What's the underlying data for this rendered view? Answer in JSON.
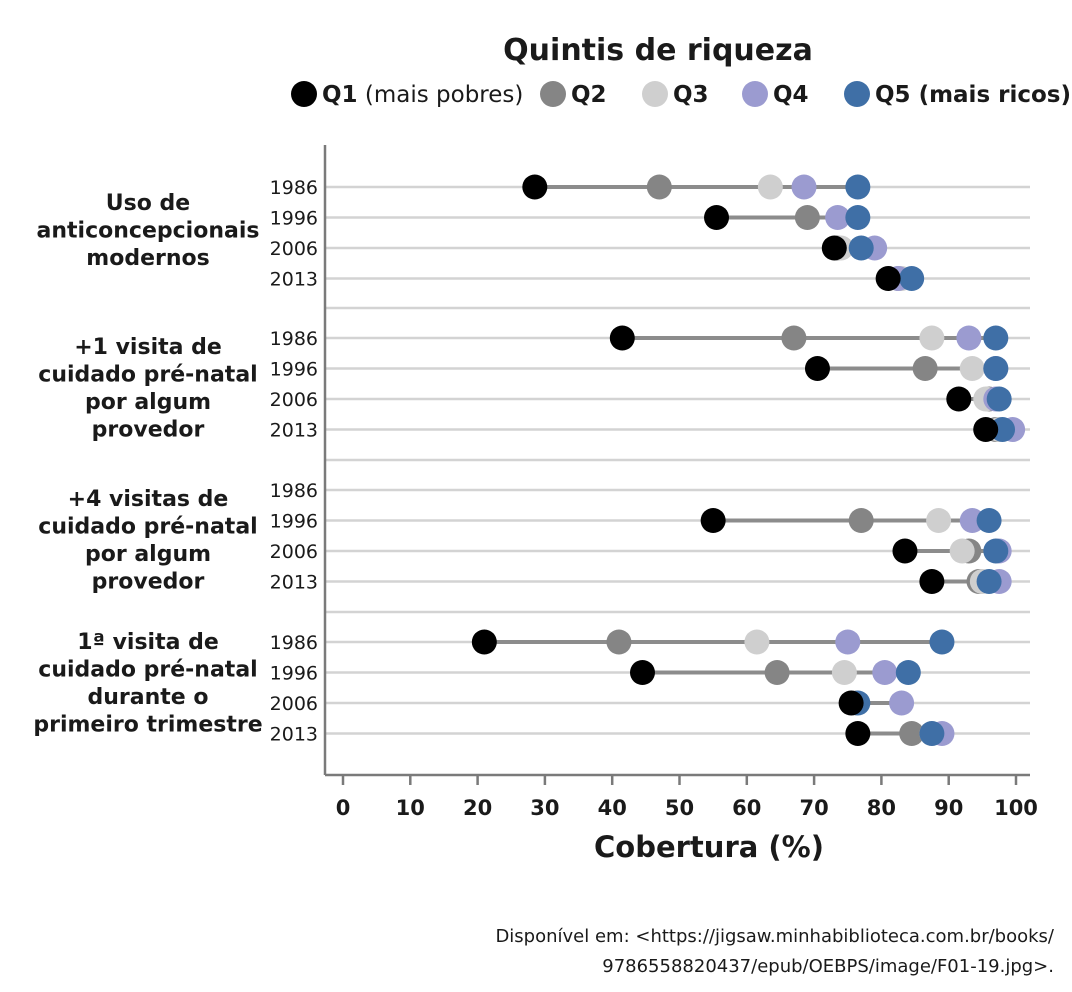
{
  "chart_data": {
    "type": "dot-range",
    "legend": {
      "title": "Quintis de riqueza",
      "entries": [
        {
          "key": "Q1",
          "bold": "Q1",
          "rest": " (mais pobres)",
          "color": "#000000"
        },
        {
          "key": "Q2",
          "bold": "Q2",
          "rest": "",
          "color": "#858585"
        },
        {
          "key": "Q3",
          "bold": "Q3",
          "rest": "",
          "color": "#cfcfcf"
        },
        {
          "key": "Q4",
          "bold": "Q4",
          "rest": "",
          "color": "#9b9bd0"
        },
        {
          "key": "Q5",
          "bold": "Q5 (mais ricos)",
          "rest": "",
          "color": "#3f6fa6"
        }
      ]
    },
    "xlabel": "Cobertura (%)",
    "xlim": [
      0,
      100
    ],
    "xticks": [
      "0",
      "10",
      "20",
      "30",
      "40",
      "50",
      "60",
      "70",
      "80",
      "90",
      "100"
    ],
    "groups": [
      {
        "label_lines": [
          "Uso de",
          "anticoncepcionais",
          "modernos"
        ],
        "rows": [
          {
            "year": "1986",
            "values": [
              28.5,
              47,
              63.5,
              68.5,
              76.5
            ]
          },
          {
            "year": "1996",
            "values": [
              55.5,
              69,
              null,
              73.5,
              76.5
            ]
          },
          {
            "year": "2006",
            "values": [
              73,
              73.5,
              74,
              79,
              77
            ]
          },
          {
            "year": "2013",
            "values": [
              81,
              82.5,
              83,
              82.5,
              84.5
            ]
          }
        ]
      },
      {
        "label_lines": [
          "+1 visita de",
          "cuidado pré-natal",
          "por algum",
          "provedor"
        ],
        "rows": [
          {
            "year": "1986",
            "values": [
              41.5,
              67,
              87.5,
              93,
              97
            ]
          },
          {
            "year": "1996",
            "values": [
              70.5,
              86.5,
              93.5,
              97,
              97
            ]
          },
          {
            "year": "2006",
            "values": [
              91.5,
              96,
              95.5,
              97,
              97.5
            ]
          },
          {
            "year": "2013",
            "values": [
              95.5,
              97,
              97.5,
              99.5,
              98
            ]
          }
        ]
      },
      {
        "label_lines": [
          "+4 visitas de",
          "cuidado pré-natal",
          "por algum",
          "provedor"
        ],
        "rows": [
          {
            "year": "1986",
            "values": [
              null,
              null,
              null,
              null,
              null
            ]
          },
          {
            "year": "1996",
            "values": [
              55,
              77,
              88.5,
              93.5,
              96
            ]
          },
          {
            "year": "2006",
            "values": [
              83.5,
              93,
              92,
              97.5,
              97
            ]
          },
          {
            "year": "2013",
            "values": [
              87.5,
              94.5,
              95,
              97.5,
              96
            ]
          }
        ]
      },
      {
        "label_lines": [
          "1ª visita de",
          "cuidado pré-natal",
          "durante o",
          "primeiro trimestre"
        ],
        "rows": [
          {
            "year": "1986",
            "values": [
              21,
              41,
              61.5,
              75,
              89
            ]
          },
          {
            "year": "1996",
            "values": [
              44.5,
              64.5,
              74.5,
              80.5,
              84
            ]
          },
          {
            "year": "2006",
            "values": [
              75.5,
              76,
              76,
              83,
              76.5
            ]
          },
          {
            "year": "2013",
            "values": [
              76.5,
              84.5,
              87.5,
              89,
              87.5
            ]
          }
        ]
      }
    ]
  },
  "source": {
    "line1": "Disponível em: <https://jigsaw.minhabiblioteca.com.br/books/",
    "line2": "9786558820437/epub/OEBPS/image/F01-19.jpg>."
  }
}
